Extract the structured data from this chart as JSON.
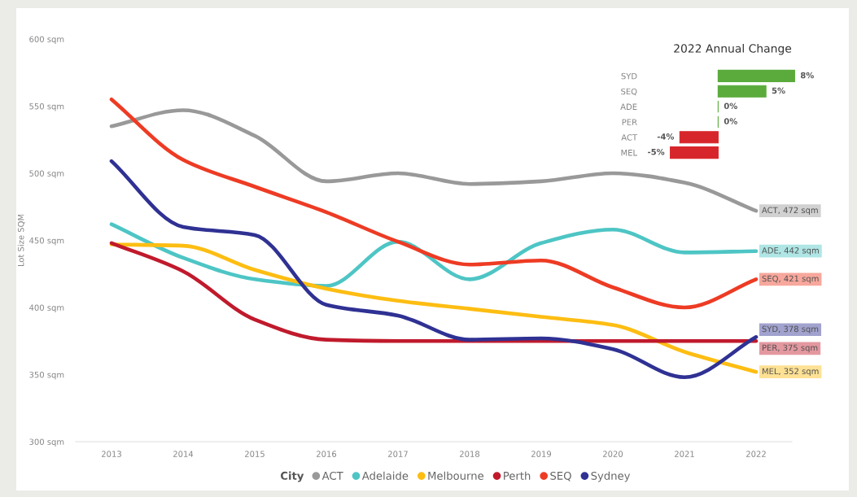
{
  "chart_data": [
    {
      "type": "line",
      "ylabel": "Lot Size SQM",
      "categories": [
        "2013",
        "2014",
        "2015",
        "2016",
        "2017",
        "2018",
        "2019",
        "2020",
        "2021",
        "2022"
      ],
      "series": [
        {
          "name": "ACT",
          "color": "#999999",
          "values": [
            535,
            547,
            528,
            494,
            500,
            492,
            494,
            500,
            493,
            472
          ],
          "value_labels": [
            null,
            null,
            null,
            null,
            null,
            null,
            null,
            null,
            null,
            "ACT, 472 sqm"
          ]
        },
        {
          "name": "Adelaide",
          "color": "#4ec5c5",
          "values": [
            462,
            437,
            421,
            416,
            449,
            421,
            448,
            458,
            441,
            442
          ],
          "value_labels": [
            null,
            null,
            null,
            null,
            null,
            null,
            null,
            null,
            null,
            "ADE, 442 sqm"
          ]
        },
        {
          "name": "Melbourne",
          "color": "#fdbd12",
          "values": [
            447,
            446,
            428,
            414,
            405,
            399,
            393,
            387,
            367,
            352
          ],
          "value_labels": [
            null,
            null,
            null,
            null,
            null,
            null,
            null,
            null,
            null,
            "MEL, 352 sqm"
          ]
        },
        {
          "name": "Perth",
          "color": "#c01a2c",
          "values": [
            448,
            427,
            391,
            376,
            375,
            375,
            375,
            375,
            375,
            375
          ],
          "value_labels": [
            null,
            null,
            null,
            null,
            null,
            null,
            null,
            null,
            null,
            "PER, 375 sqm"
          ]
        },
        {
          "name": "SEQ",
          "color": "#ee3b24",
          "values": [
            555,
            510,
            490,
            471,
            449,
            432,
            435,
            415,
            400,
            421
          ],
          "value_labels": [
            null,
            null,
            null,
            null,
            null,
            null,
            null,
            null,
            null,
            "SEQ, 421 sqm"
          ]
        },
        {
          "name": "Sydney",
          "color": "#2f3193",
          "values": [
            509,
            460,
            454,
            402,
            394,
            376,
            377,
            369,
            348,
            378
          ],
          "value_labels": [
            null,
            null,
            null,
            null,
            null,
            null,
            null,
            null,
            null,
            "SYD, 378 sqm"
          ]
        }
      ],
      "ylim": [
        300,
        600
      ],
      "yticks": [
        {
          "value": 300,
          "label": "300 sqm"
        },
        {
          "value": 350,
          "label": "350 sqm"
        },
        {
          "value": 400,
          "label": "400 sqm"
        },
        {
          "value": 450,
          "label": "450 sqm"
        },
        {
          "value": 500,
          "label": "500 sqm"
        },
        {
          "value": 550,
          "label": "550 sqm"
        },
        {
          "value": 600,
          "label": "600 sqm"
        }
      ],
      "legend": "bottom",
      "legend_title": "City",
      "line_style": "solid"
    },
    {
      "type": "bar",
      "orientation": "horizontal",
      "title": "2022 Annual Change",
      "categories": [
        "SYD",
        "SEQ",
        "ADE",
        "PER",
        "ACT",
        "MEL"
      ],
      "values": [
        8,
        5,
        0,
        0,
        -4,
        -5
      ],
      "colors": [
        "#5aab3b",
        "#5aab3b",
        "#5aab3b",
        "#5aab3b",
        "#d7262b",
        "#d7262b"
      ],
      "value_labels": [
        "8%",
        "5%",
        "0%",
        "0%",
        "-4%",
        "-5%"
      ],
      "tick_labels": "y"
    }
  ]
}
